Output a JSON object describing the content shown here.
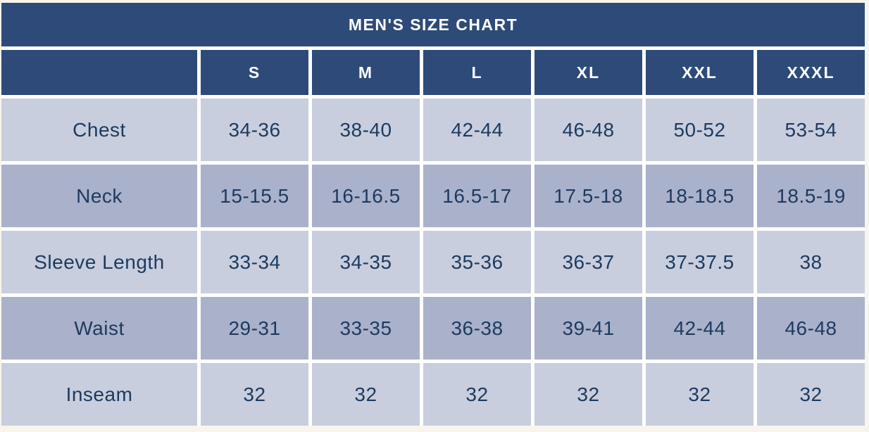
{
  "colors": {
    "header_navy": "#2e4a79",
    "row_light": "#c8cede",
    "row_dark": "#aab1cb",
    "body_text": "#1d3a5e",
    "grid_gap": "#ffffff",
    "page_background": "#f8f5ec"
  },
  "chart_data": {
    "type": "table",
    "title": "MEN'S SIZE CHART",
    "columns": [
      "",
      "S",
      "M",
      "L",
      "XL",
      "XXL",
      "XXXL"
    ],
    "rows": [
      {
        "label": "Chest",
        "values": [
          "34-36",
          "38-40",
          "42-44",
          "46-48",
          "50-52",
          "53-54"
        ]
      },
      {
        "label": "Neck",
        "values": [
          "15-15.5",
          "16-16.5",
          "16.5-17",
          "17.5-18",
          "18-18.5",
          "18.5-19"
        ]
      },
      {
        "label": "Sleeve Length",
        "values": [
          "33-34",
          "34-35",
          "35-36",
          "36-37",
          "37-37.5",
          "38"
        ]
      },
      {
        "label": "Waist",
        "values": [
          "29-31",
          "33-35",
          "36-38",
          "39-41",
          "42-44",
          "46-48"
        ]
      },
      {
        "label": "Inseam",
        "values": [
          "32",
          "32",
          "32",
          "32",
          "32",
          "32"
        ]
      }
    ],
    "layout": {
      "alternating_rows": true,
      "first_row_shade": "light",
      "grid": "white gaps between cells"
    }
  }
}
